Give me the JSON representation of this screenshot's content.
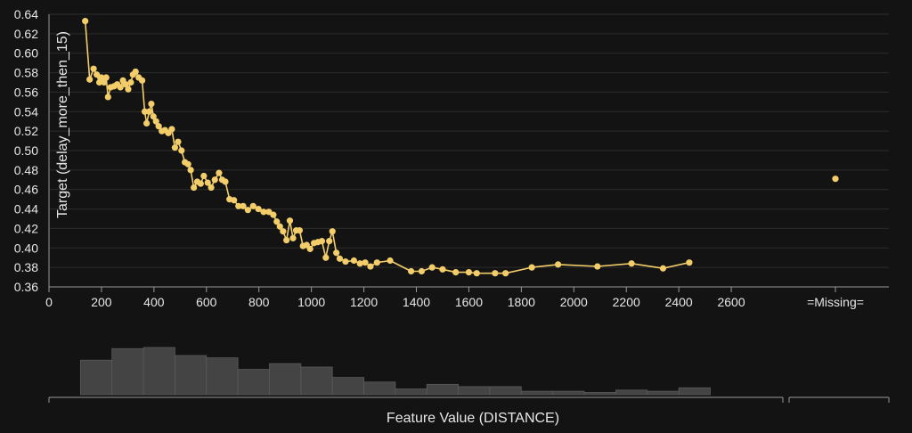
{
  "colors": {
    "background": "#131313",
    "line": "#f2cd6a",
    "bar": "#444444",
    "bar_edge": "#5a5a5a",
    "text": "#e6e6e6",
    "grid": "#2c2c2c",
    "axis": "#9a9a9a"
  },
  "chart_data": [
    {
      "type": "line",
      "ylabel": "Target (delay_more_then_15)",
      "xlim": [
        0,
        2800
      ],
      "ylim": [
        0.36,
        0.64
      ],
      "xticks": [
        0,
        200,
        400,
        600,
        800,
        1000,
        1200,
        1400,
        1600,
        1800,
        2000,
        2200,
        2400,
        2600
      ],
      "yticks": [
        0.36,
        0.38,
        0.4,
        0.42,
        0.44,
        0.46,
        0.48,
        0.5,
        0.52,
        0.54,
        0.56,
        0.58,
        0.6,
        0.62,
        0.64
      ],
      "grid": true,
      "missing_label": "=Missing=",
      "missing_value": 0.471,
      "series": [
        {
          "x": [
            138,
            155,
            170,
            182,
            192,
            200,
            210,
            218,
            225,
            235,
            248,
            260,
            272,
            282,
            292,
            302,
            312,
            320,
            330,
            342,
            355,
            365,
            372,
            382,
            390,
            398,
            408,
            418,
            430,
            442,
            455,
            468,
            480,
            492,
            505,
            518,
            530,
            540,
            552,
            565,
            578,
            590,
            605,
            618,
            632,
            648,
            660,
            672,
            688,
            705,
            722,
            740,
            758,
            778,
            798,
            818,
            838,
            855,
            868,
            880,
            892,
            905,
            918,
            930,
            942,
            955,
            968,
            982,
            995,
            1010,
            1025,
            1040,
            1055,
            1068,
            1080,
            1095,
            1108,
            1130,
            1162,
            1185,
            1205,
            1225,
            1250,
            1300,
            1380,
            1420,
            1460,
            1500,
            1550,
            1600,
            1630,
            1700,
            1740,
            1840,
            1940,
            2090,
            2220,
            2340,
            2440
          ],
          "y": [
            0.633,
            0.573,
            0.584,
            0.578,
            0.57,
            0.575,
            0.57,
            0.575,
            0.555,
            0.565,
            0.566,
            0.568,
            0.565,
            0.572,
            0.568,
            0.563,
            0.57,
            0.578,
            0.581,
            0.575,
            0.572,
            0.54,
            0.528,
            0.54,
            0.548,
            0.535,
            0.53,
            0.525,
            0.52,
            0.521,
            0.518,
            0.522,
            0.503,
            0.509,
            0.5,
            0.488,
            0.486,
            0.48,
            0.462,
            0.468,
            0.466,
            0.474,
            0.467,
            0.462,
            0.47,
            0.477,
            0.47,
            0.468,
            0.45,
            0.449,
            0.443,
            0.443,
            0.439,
            0.443,
            0.44,
            0.437,
            0.437,
            0.434,
            0.427,
            0.422,
            0.417,
            0.408,
            0.428,
            0.41,
            0.418,
            0.418,
            0.402,
            0.403,
            0.399,
            0.405,
            0.406,
            0.407,
            0.39,
            0.407,
            0.417,
            0.395,
            0.389,
            0.386,
            0.387,
            0.384,
            0.385,
            0.381,
            0.385,
            0.387,
            0.376,
            0.376,
            0.38,
            0.378,
            0.375,
            0.375,
            0.374,
            0.374,
            0.374,
            0.38,
            0.383,
            0.381,
            0.384,
            0.379,
            0.385
          ]
        }
      ]
    },
    {
      "type": "bar",
      "xlabel": "Feature Value (DISTANCE)",
      "bins": [
        {
          "from": 120,
          "to": 240,
          "value": 30
        },
        {
          "from": 240,
          "to": 360,
          "value": 40
        },
        {
          "from": 360,
          "to": 480,
          "value": 41
        },
        {
          "from": 480,
          "to": 600,
          "value": 34
        },
        {
          "from": 600,
          "to": 720,
          "value": 32
        },
        {
          "from": 720,
          "to": 840,
          "value": 22
        },
        {
          "from": 840,
          "to": 960,
          "value": 27
        },
        {
          "from": 960,
          "to": 1080,
          "value": 24
        },
        {
          "from": 1080,
          "to": 1200,
          "value": 15
        },
        {
          "from": 1200,
          "to": 1320,
          "value": 11
        },
        {
          "from": 1320,
          "to": 1440,
          "value": 5
        },
        {
          "from": 1440,
          "to": 1560,
          "value": 9
        },
        {
          "from": 1560,
          "to": 1680,
          "value": 7
        },
        {
          "from": 1680,
          "to": 1800,
          "value": 7
        },
        {
          "from": 1800,
          "to": 1920,
          "value": 3
        },
        {
          "from": 1920,
          "to": 2040,
          "value": 3
        },
        {
          "from": 2040,
          "to": 2160,
          "value": 2
        },
        {
          "from": 2160,
          "to": 2280,
          "value": 4
        },
        {
          "from": 2280,
          "to": 2400,
          "value": 3
        },
        {
          "from": 2400,
          "to": 2520,
          "value": 6
        }
      ]
    }
  ]
}
